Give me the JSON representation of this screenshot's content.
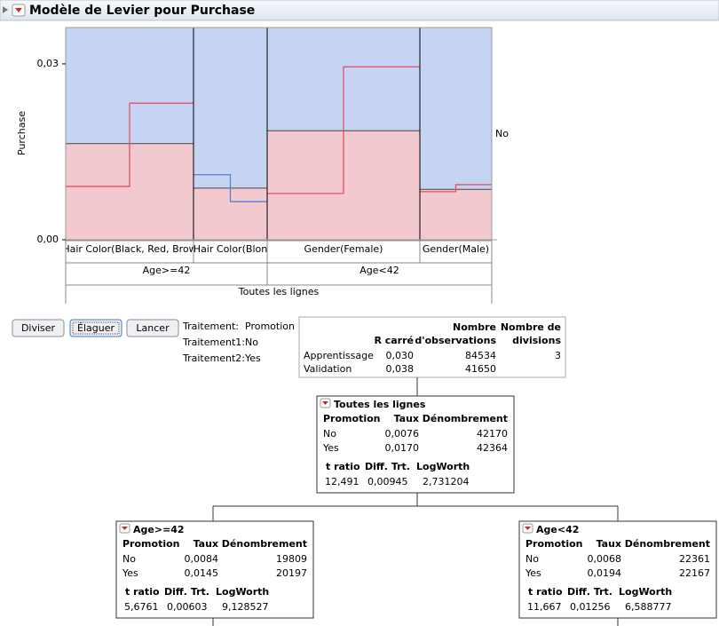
{
  "header": {
    "title": "Modèle de Levier pour Purchase"
  },
  "chart_data": {
    "type": "step",
    "y_label": "Purchase",
    "ylim": [
      0,
      0.0362
    ],
    "yticks": [
      {
        "value": 0,
        "label": "0,00"
      },
      {
        "value": 0.03,
        "label": "0,03"
      }
    ],
    "right_label": "No",
    "categories": [
      "Hair Color(Black, Red, Brow",
      "Hair Color(Blon",
      "Gender(Female)",
      "Gender(Male)"
    ],
    "groups": [
      "Age>=42",
      "Age<42"
    ],
    "root": "Toutes les lignes",
    "background_color": "#c6d4f4",
    "fill_color": "#f3c9d0",
    "levels": [
      0.0164,
      0.0088,
      0.0186,
      0.0086
    ],
    "steps": [
      {
        "color": "#e8505e",
        "values": [
          0.0091,
          0.0233
        ]
      },
      {
        "color": "#5580e0",
        "values": [
          0.0111,
          0.0065
        ]
      },
      {
        "color": "#e8505e",
        "values": [
          0.0079,
          0.0295
        ]
      },
      {
        "color": "#e8505e",
        "values": [
          0.0082,
          0.0094
        ]
      }
    ]
  },
  "buttons": [
    "Diviser",
    "Élaguer",
    "Lancer"
  ],
  "treatment": [
    [
      "Traitement:",
      "Promotion"
    ],
    [
      "Traitement1:",
      "No"
    ],
    [
      "Traitement2:",
      "Yes"
    ]
  ],
  "summary": {
    "header": [
      [
        "",
        ""
      ],
      [
        "",
        "R carré"
      ],
      [
        "Nombre",
        "d'observations"
      ],
      [
        "Nombre de",
        "divisions"
      ]
    ],
    "rows": [
      [
        "Apprentissage",
        "0,030",
        "84534",
        "3"
      ],
      [
        "Validation",
        "0,038",
        "41650",
        ""
      ]
    ]
  },
  "node_columns": [
    "Promotion",
    "Taux",
    "Dénombrement"
  ],
  "stats_columns": [
    "t ratio",
    "Diff. Trt.",
    "LogWorth"
  ],
  "nodes": [
    {
      "title": "Toutes les lignes",
      "rows": [
        [
          "No",
          "0,0076",
          "42170"
        ],
        [
          "Yes",
          "0,0170",
          "42364"
        ]
      ],
      "stats": [
        "12,491",
        "0,00945",
        "2,731204"
      ]
    },
    {
      "title": "Age>=42",
      "rows": [
        [
          "No",
          "0,0084",
          "19809"
        ],
        [
          "Yes",
          "0,0145",
          "20197"
        ]
      ],
      "stats": [
        "5,6761",
        "0,00603",
        "9,128527"
      ]
    },
    {
      "title": "Age<42",
      "rows": [
        [
          "No",
          "0,0068",
          "22361"
        ],
        [
          "Yes",
          "0,0194",
          "22167"
        ]
      ],
      "stats": [
        "11,667",
        "0,01256",
        "6,588777"
      ]
    }
  ]
}
